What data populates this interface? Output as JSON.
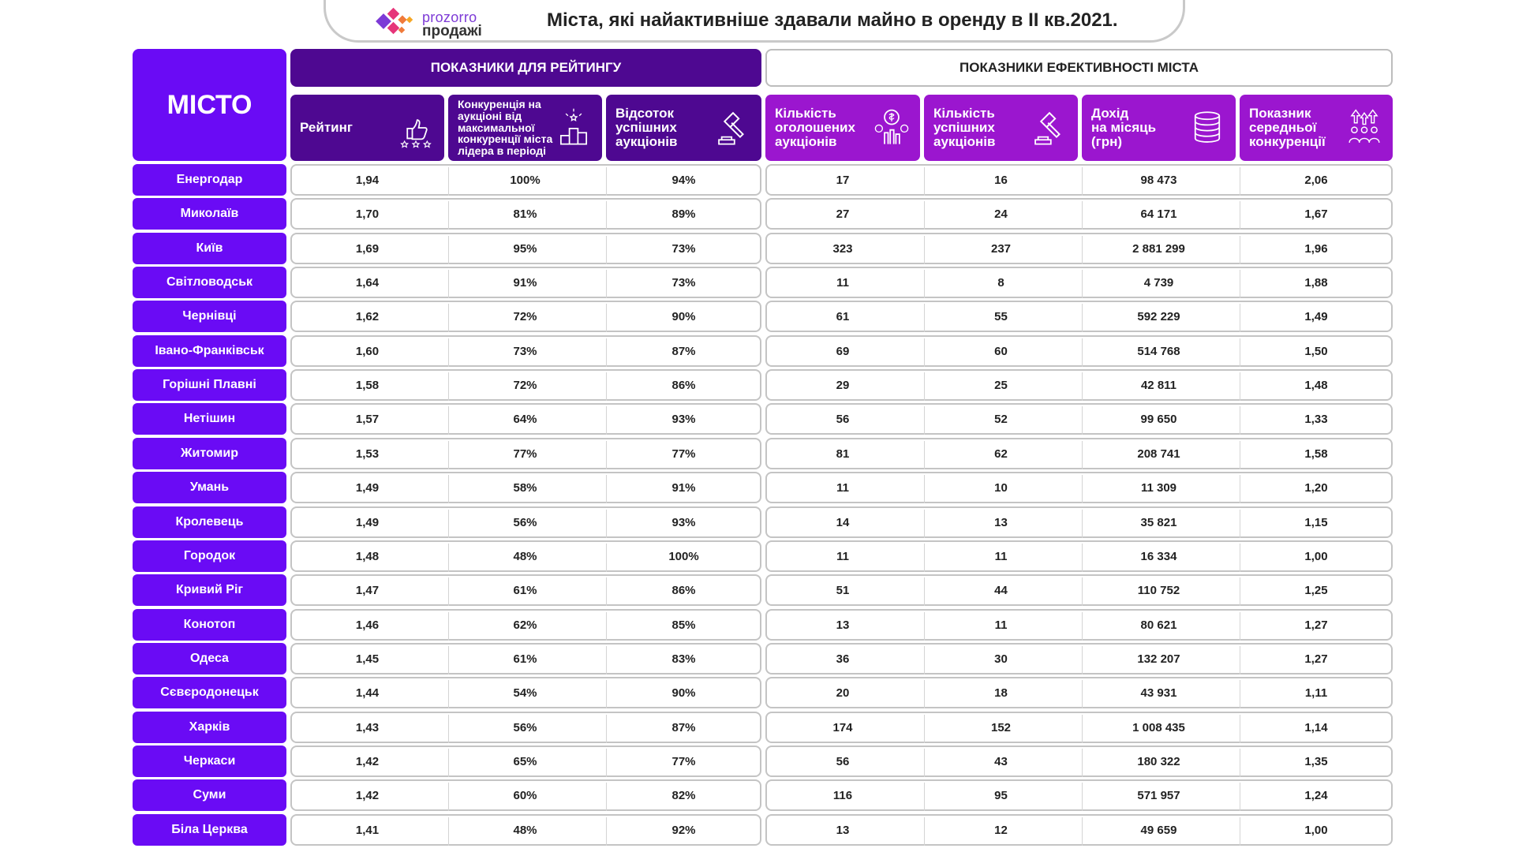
{
  "logo": {
    "line1": "prozorro",
    "line2": "продажі"
  },
  "title": "Міста, які найактивніше здавали майно в оренду в II кв.2021.",
  "colors": {
    "city_bg": "#6a0bf5",
    "dark_header": "#4e0891",
    "magenta_header": "#9b16cf",
    "border": "#c4c4c4"
  },
  "table": {
    "city_header": "МІСТО",
    "group_rating": "ПОКАЗНИКИ ДЛЯ РЕЙТИНГУ",
    "group_efficiency": "ПОКАЗНИКИ ЕФЕКТИВНОСТІ МІСТА",
    "columns": [
      {
        "label": "Рейтинг",
        "icon": "thumbs-up-stars-icon"
      },
      {
        "label": "Конкуренція на\nаукціоні від\nмаксимальної\nконкуренції міста\nлідера в періоді",
        "icon": "podium-icon"
      },
      {
        "label": "Відсоток\nуспішних\nаукціонів",
        "icon": "gavel-icon"
      },
      {
        "label": "Кількість\nоголошених\nаукціонів",
        "icon": "money-hand-icon"
      },
      {
        "label": "Кількість\nуспішних\nаукціонів",
        "icon": "gavel-icon"
      },
      {
        "label": "Дохід\nна місяць\n(грн)",
        "icon": "coins-stack-icon"
      },
      {
        "label": "Показник\nсередньої\nконкуренції",
        "icon": "people-arrows-icon"
      }
    ]
  },
  "chart_data": {
    "type": "table",
    "title": "Міста, які найактивніше здавали майно в оренду в II кв.2021.",
    "columns": [
      "МІСТО",
      "Рейтинг",
      "Конкуренція на аукціоні від максимальної конкуренції міста лідера в періоді",
      "Відсоток успішних аукціонів",
      "Кількість оголошених аукціонів",
      "Кількість успішних аукціонів",
      "Дохід на місяць (грн)",
      "Показник середньої конкуренції"
    ],
    "rows": [
      [
        "Енергодар",
        "1,94",
        "100%",
        "94%",
        "17",
        "16",
        "98 473",
        "2,06"
      ],
      [
        "Миколаїв",
        "1,70",
        "81%",
        "89%",
        "27",
        "24",
        "64 171",
        "1,67"
      ],
      [
        "Київ",
        "1,69",
        "95%",
        "73%",
        "323",
        "237",
        "2 881 299",
        "1,96"
      ],
      [
        "Світловодськ",
        "1,64",
        "91%",
        "73%",
        "11",
        "8",
        "4 739",
        "1,88"
      ],
      [
        "Чернівці",
        "1,62",
        "72%",
        "90%",
        "61",
        "55",
        "592 229",
        "1,49"
      ],
      [
        "Івано-Франківськ",
        "1,60",
        "73%",
        "87%",
        "69",
        "60",
        "514 768",
        "1,50"
      ],
      [
        "Горішні Плавні",
        "1,58",
        "72%",
        "86%",
        "29",
        "25",
        "42 811",
        "1,48"
      ],
      [
        "Нетішин",
        "1,57",
        "64%",
        "93%",
        "56",
        "52",
        "99 650",
        "1,33"
      ],
      [
        "Житомир",
        "1,53",
        "77%",
        "77%",
        "81",
        "62",
        "208 741",
        "1,58"
      ],
      [
        "Умань",
        "1,49",
        "58%",
        "91%",
        "11",
        "10",
        "11 309",
        "1,20"
      ],
      [
        "Кролевець",
        "1,49",
        "56%",
        "93%",
        "14",
        "13",
        "35 821",
        "1,15"
      ],
      [
        "Городок",
        "1,48",
        "48%",
        "100%",
        "11",
        "11",
        "16 334",
        "1,00"
      ],
      [
        "Кривий Ріг",
        "1,47",
        "61%",
        "86%",
        "51",
        "44",
        "110 752",
        "1,25"
      ],
      [
        "Конотоп",
        "1,46",
        "62%",
        "85%",
        "13",
        "11",
        "80 621",
        "1,27"
      ],
      [
        "Одеса",
        "1,45",
        "61%",
        "83%",
        "36",
        "30",
        "132 207",
        "1,27"
      ],
      [
        "Сєвєродонецьк",
        "1,44",
        "54%",
        "90%",
        "20",
        "18",
        "43 931",
        "1,11"
      ],
      [
        "Харків",
        "1,43",
        "56%",
        "87%",
        "174",
        "152",
        "1 008 435",
        "1,14"
      ],
      [
        "Черкаси",
        "1,42",
        "65%",
        "77%",
        "56",
        "43",
        "180 322",
        "1,35"
      ],
      [
        "Суми",
        "1,42",
        "60%",
        "82%",
        "116",
        "95",
        "571 957",
        "1,24"
      ],
      [
        "Біла Церква",
        "1,41",
        "48%",
        "92%",
        "13",
        "12",
        "49 659",
        "1,00"
      ]
    ]
  }
}
